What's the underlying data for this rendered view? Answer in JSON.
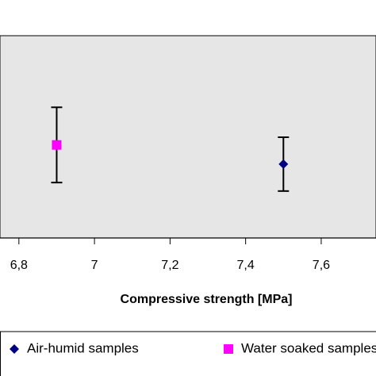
{
  "chart_data": {
    "type": "scatter",
    "x_label": "Compressive strength [MPa]",
    "xlim": [
      6.75,
      7.745
    ],
    "xticks": [
      {
        "value": 6.8,
        "label": "6,8"
      },
      7,
      {
        "value": 7.2,
        "label": "7,2"
      },
      {
        "value": 7.4,
        "label": "7,4"
      },
      {
        "value": 7.6,
        "label": "7,6"
      }
    ],
    "ylim": [
      0,
      1
    ],
    "series": [
      {
        "name": "Air-humid samples",
        "color": "#000080",
        "marker": "diamond",
        "x": [
          7.5
        ],
        "y": [
          0.365
        ],
        "error": [
          0.133
        ]
      },
      {
        "name": "Water soaked samples",
        "color": "#ff00ff",
        "marker": "square",
        "x": [
          6.9
        ],
        "y": [
          0.46
        ],
        "error": [
          0.186
        ]
      }
    ]
  }
}
